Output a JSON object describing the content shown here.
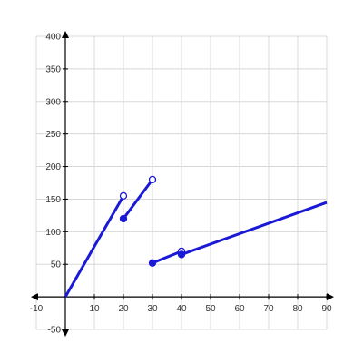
{
  "chart_data": {
    "type": "line",
    "title": "",
    "xlabel": "",
    "ylabel": "",
    "xlim": [
      -10,
      90
    ],
    "ylim": [
      -50,
      400
    ],
    "grid": true,
    "x_ticks": [
      -10,
      10,
      20,
      30,
      40,
      50,
      60,
      70,
      80,
      90
    ],
    "y_ticks": [
      -50,
      50,
      100,
      150,
      200,
      250,
      300,
      350,
      400
    ],
    "line_color": "#1a1ad6",
    "grid_color": "#d8d8d8",
    "axis_color": "#000000",
    "series": [
      {
        "segments": [
          {
            "start": [
              0,
              0
            ],
            "end": [
              20,
              155
            ],
            "start_point": "none",
            "end_point": "open"
          },
          {
            "start": [
              20,
              120
            ],
            "end": [
              30,
              180
            ],
            "start_point": "closed",
            "end_point": "open"
          },
          {
            "start": [
              30,
              52
            ],
            "end": [
              40,
              70
            ],
            "start_point": "closed",
            "end_point": "open"
          },
          {
            "start": [
              40,
              65
            ],
            "end": [
              90,
              145
            ],
            "start_point": "closed",
            "end_point": "none"
          }
        ]
      }
    ]
  }
}
